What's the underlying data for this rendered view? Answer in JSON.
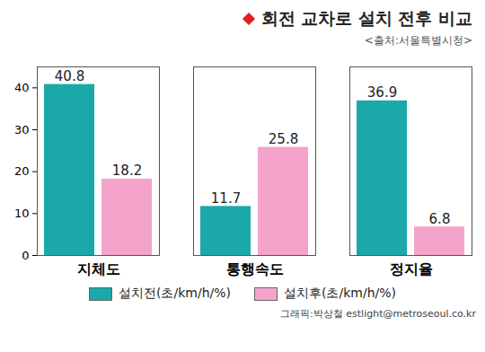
{
  "chart_data": {
    "type": "bar",
    "title": "회전 교차로 설치 전후 비교",
    "subtitle": "<출처:서울특별시청>",
    "categories": [
      "지체도",
      "통행속도",
      "정지율"
    ],
    "series": [
      {
        "name": "설치전(초/km/h/%)",
        "color": "#1ba8a8",
        "values": [
          40.8,
          11.7,
          36.9
        ]
      },
      {
        "name": "설치후(초/km/h/%)",
        "color": "#f4a3cb",
        "values": [
          18.2,
          25.8,
          6.8
        ]
      }
    ],
    "ylim": [
      0,
      45
    ],
    "yticks": [
      0,
      10,
      20,
      30,
      40
    ],
    "grid": false,
    "data_labels": true,
    "legend": "bottom",
    "caption": "그래픽:박상철 estlight@metroseoul.co.kr"
  }
}
